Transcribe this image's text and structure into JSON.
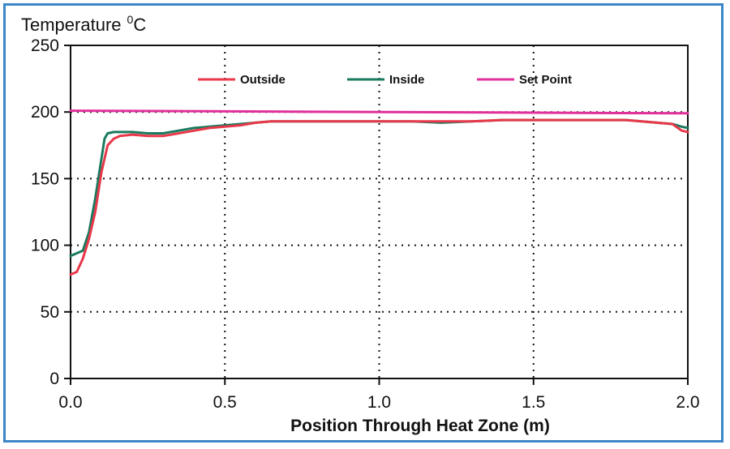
{
  "chart_data": {
    "type": "line",
    "ylabel": "Temperature",
    "ylabel_unit_sup": "0",
    "ylabel_unit": "C",
    "xlabel": "Position Through Heat Zone (m)",
    "xlim": [
      0,
      2.0
    ],
    "ylim": [
      0,
      250
    ],
    "xticks": [
      0.0,
      0.5,
      1.0,
      1.5,
      2.0
    ],
    "xtick_labels": [
      "0.0",
      "0.5",
      "1.0",
      "1.5",
      "2.0"
    ],
    "yticks": [
      0,
      50,
      100,
      150,
      200,
      250
    ],
    "ytick_labels": [
      "0",
      "50",
      "100",
      "150",
      "200",
      "250"
    ],
    "grid": "dotted",
    "legend_position": "top",
    "series": [
      {
        "name": "Outside",
        "color": "#e8384a",
        "x": [
          0.0,
          0.02,
          0.04,
          0.06,
          0.08,
          0.1,
          0.12,
          0.14,
          0.16,
          0.2,
          0.25,
          0.3,
          0.35,
          0.4,
          0.45,
          0.5,
          0.55,
          0.6,
          0.65,
          0.7,
          0.8,
          0.9,
          1.0,
          1.1,
          1.2,
          1.3,
          1.4,
          1.5,
          1.6,
          1.7,
          1.8,
          1.85,
          1.9,
          1.95,
          1.98,
          2.0
        ],
        "y": [
          78,
          80,
          90,
          105,
          125,
          155,
          175,
          180,
          182,
          183,
          182,
          182,
          184,
          186,
          188,
          189,
          190,
          192,
          193,
          193,
          193,
          193,
          193,
          193,
          193,
          193,
          194,
          194,
          194,
          194,
          194,
          193,
          192,
          191,
          186,
          185
        ]
      },
      {
        "name": "Inside",
        "color": "#1a7a5e",
        "x": [
          0.0,
          0.02,
          0.04,
          0.06,
          0.08,
          0.1,
          0.11,
          0.12,
          0.14,
          0.16,
          0.2,
          0.25,
          0.3,
          0.35,
          0.4,
          0.45,
          0.5,
          0.55,
          0.6,
          0.65,
          0.7,
          0.8,
          0.9,
          1.0,
          1.1,
          1.2,
          1.3,
          1.4,
          1.5,
          1.6,
          1.7,
          1.8,
          1.85,
          1.9,
          1.95,
          1.98,
          2.0
        ],
        "y": [
          92,
          94,
          96,
          110,
          135,
          165,
          180,
          184,
          185,
          185,
          185,
          184,
          184,
          186,
          188,
          189,
          190,
          191,
          192,
          193,
          193,
          193,
          193,
          193,
          193,
          192,
          193,
          194,
          194,
          194,
          194,
          194,
          193,
          192,
          191,
          189,
          188
        ]
      },
      {
        "name": "Set Point",
        "color": "#e0309a",
        "x": [
          0.0,
          2.0
        ],
        "y": [
          201,
          199
        ]
      }
    ]
  }
}
